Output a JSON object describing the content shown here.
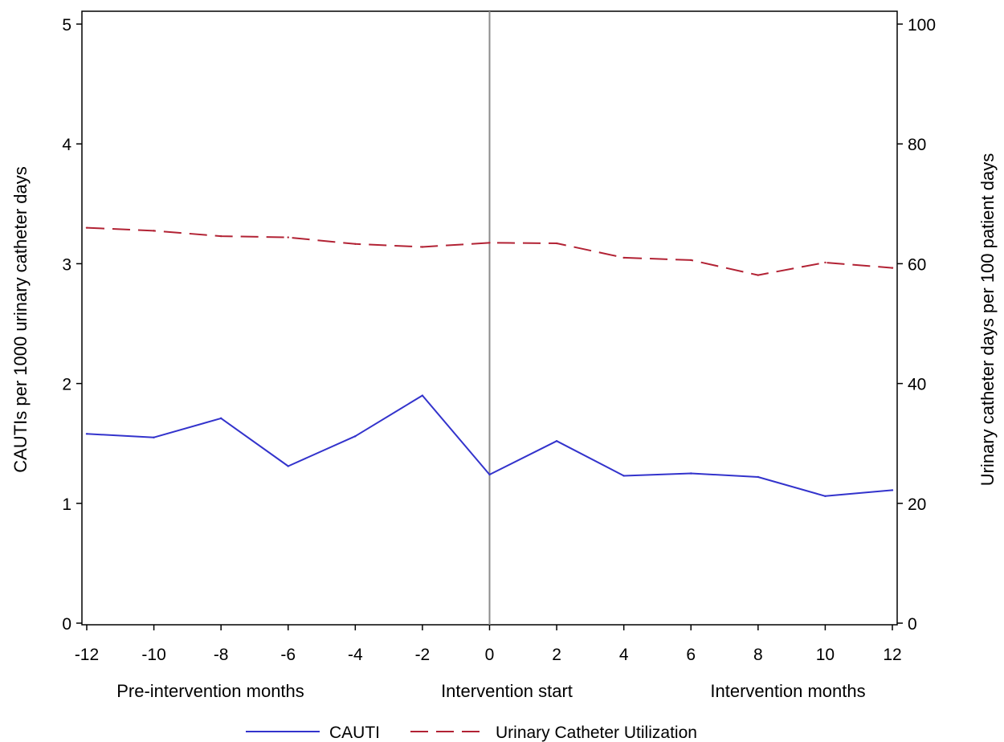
{
  "chart_data": {
    "type": "line",
    "title": "",
    "x": [
      -12,
      -10,
      -8,
      -6,
      -4,
      -2,
      0,
      2,
      4,
      6,
      8,
      10,
      12
    ],
    "xlim": [
      -12,
      12
    ],
    "xticks": [
      "-12",
      "-10",
      "-8",
      "-6",
      "-4",
      "-2",
      "0",
      "2",
      "4",
      "6",
      "8",
      "10",
      "12"
    ],
    "xlabel": "",
    "x_region_labels": [
      "Pre-intervention months",
      "Intervention start",
      "Intervention months"
    ],
    "ylabel": "CAUTIs per 1000 urinary catheter days",
    "ylim": [
      0,
      5
    ],
    "yticks": [
      "0",
      "1",
      "2",
      "3",
      "4",
      "5"
    ],
    "y2label": "Urinary catheter days per 100 patient days",
    "y2lim": [
      0,
      100
    ],
    "y2ticks": [
      "0",
      "20",
      "40",
      "60",
      "80",
      "100"
    ],
    "reference_line_x": 0,
    "grid": false,
    "legend_position": "bottom",
    "series": [
      {
        "name": "CAUTI",
        "axis": "left",
        "style": "solid",
        "color": "#3333cc",
        "values": [
          1.58,
          1.55,
          1.71,
          1.31,
          1.56,
          1.9,
          1.24,
          1.52,
          1.23,
          1.25,
          1.22,
          1.06,
          1.11
        ]
      },
      {
        "name": "Urinary Catheter Utilization",
        "axis": "right",
        "style": "dashed",
        "color": "#b22234",
        "values": [
          66.0,
          65.5,
          64.6,
          64.4,
          63.3,
          62.8,
          63.5,
          63.4,
          61.0,
          60.6,
          58.1,
          60.2,
          59.3
        ]
      }
    ]
  }
}
